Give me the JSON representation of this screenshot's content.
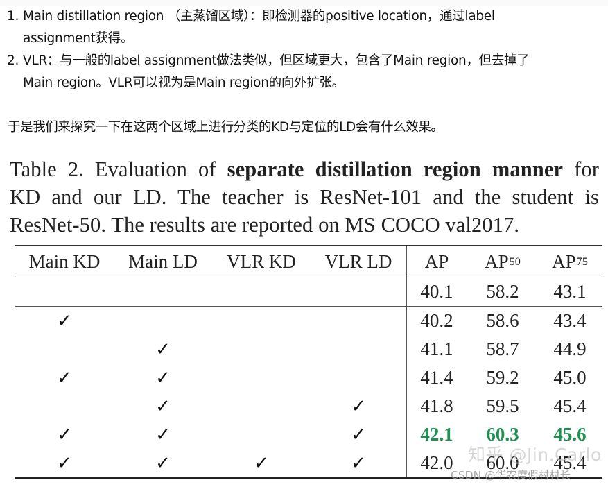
{
  "list": [
    {
      "number": "1.",
      "line1": "Main distillation region （主蒸馏区域）：即检测器的positive location，通过label",
      "line2": "assignment获得。"
    },
    {
      "number": "2.",
      "line1": "VLR：与一般的label assignment做法类似，但区域更大，包含了Main region，但去掉了",
      "line2": "Main region。VLR可以视为是Main region的向外扩张。"
    }
  ],
  "paragraph": "于是我们来探究一下在这两个区域上进行分类的KD与定位的LD会有什么效果。",
  "figure": {
    "caption": {
      "prefix": "Table 2.  Evaluation of ",
      "bold": "separate distillation region manner",
      "suffix1": " for",
      "line2": "KD and our LD. The teacher is ResNet-101 and the student is",
      "line3": "ResNet-50. The results are reported on MS COCO val2017."
    },
    "table": {
      "headers": [
        "Main KD",
        "Main LD",
        "VLR KD",
        "VLR LD",
        "AP",
        "AP",
        "AP"
      ],
      "header_subscripts": {
        "5": "50",
        "6": "75"
      },
      "check_symbol": "✓",
      "rows": [
        {
          "main_kd": "",
          "main_ld": "",
          "vlr_kd": "",
          "vlr_ld": "",
          "ap": "40.1",
          "ap50": "58.2",
          "ap75": "43.1",
          "best": false
        },
        {
          "main_kd": "✓",
          "main_ld": "",
          "vlr_kd": "",
          "vlr_ld": "",
          "ap": "40.2",
          "ap50": "58.6",
          "ap75": "43.4",
          "best": false
        },
        {
          "main_kd": "",
          "main_ld": "✓",
          "vlr_kd": "",
          "vlr_ld": "",
          "ap": "41.1",
          "ap50": "58.7",
          "ap75": "44.9",
          "best": false
        },
        {
          "main_kd": "✓",
          "main_ld": "✓",
          "vlr_kd": "",
          "vlr_ld": "",
          "ap": "41.4",
          "ap50": "59.2",
          "ap75": "45.0",
          "best": false
        },
        {
          "main_kd": "",
          "main_ld": "✓",
          "vlr_kd": "",
          "vlr_ld": "✓",
          "ap": "41.8",
          "ap50": "59.5",
          "ap75": "45.4",
          "best": false
        },
        {
          "main_kd": "✓",
          "main_ld": "✓",
          "vlr_kd": "",
          "vlr_ld": "✓",
          "ap": "42.1",
          "ap50": "60.3",
          "ap75": "45.6",
          "best": true
        },
        {
          "main_kd": "✓",
          "main_ld": "✓",
          "vlr_kd": "✓",
          "vlr_ld": "✓",
          "ap": "42.0",
          "ap50": "60.0",
          "ap75": "45.4",
          "best": false
        }
      ],
      "best_color": "#1e9150"
    }
  },
  "watermarks": {
    "zhihu": "知乎 @Jin.Carlo",
    "csdn": "CSDN @华农度假村村长"
  }
}
